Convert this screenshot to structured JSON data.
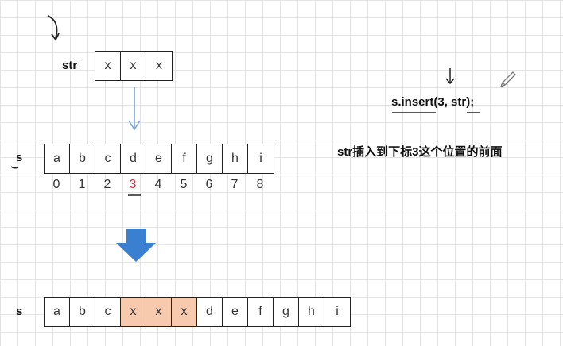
{
  "str_label": "str",
  "str_cells": [
    "x",
    "x",
    "x"
  ],
  "s_label_top": "s",
  "s_label_bottom": "s",
  "s_cells": [
    "a",
    "b",
    "c",
    "d",
    "e",
    "f",
    "g",
    "h",
    "i"
  ],
  "indices": [
    "0",
    "1",
    "2",
    "3",
    "4",
    "5",
    "6",
    "7",
    "8"
  ],
  "highlight_index": 3,
  "result_cells": [
    "a",
    "b",
    "c",
    "x",
    "x",
    "x",
    "d",
    "e",
    "f",
    "g",
    "h",
    "i"
  ],
  "result_highlight": [
    3,
    4,
    5
  ],
  "code": "s.insert(3,  str);",
  "description": "str插入到下标3这个位置的前面",
  "colors": {
    "highlight_fill": "#f7c9ad",
    "index_red": "#d9363e",
    "arrow_thin": "#7aa7d6",
    "arrow_big": "#3b7fd0"
  },
  "icons": [
    "pencil-icon",
    "down-arrow-icon",
    "curved-arrow-icon"
  ]
}
